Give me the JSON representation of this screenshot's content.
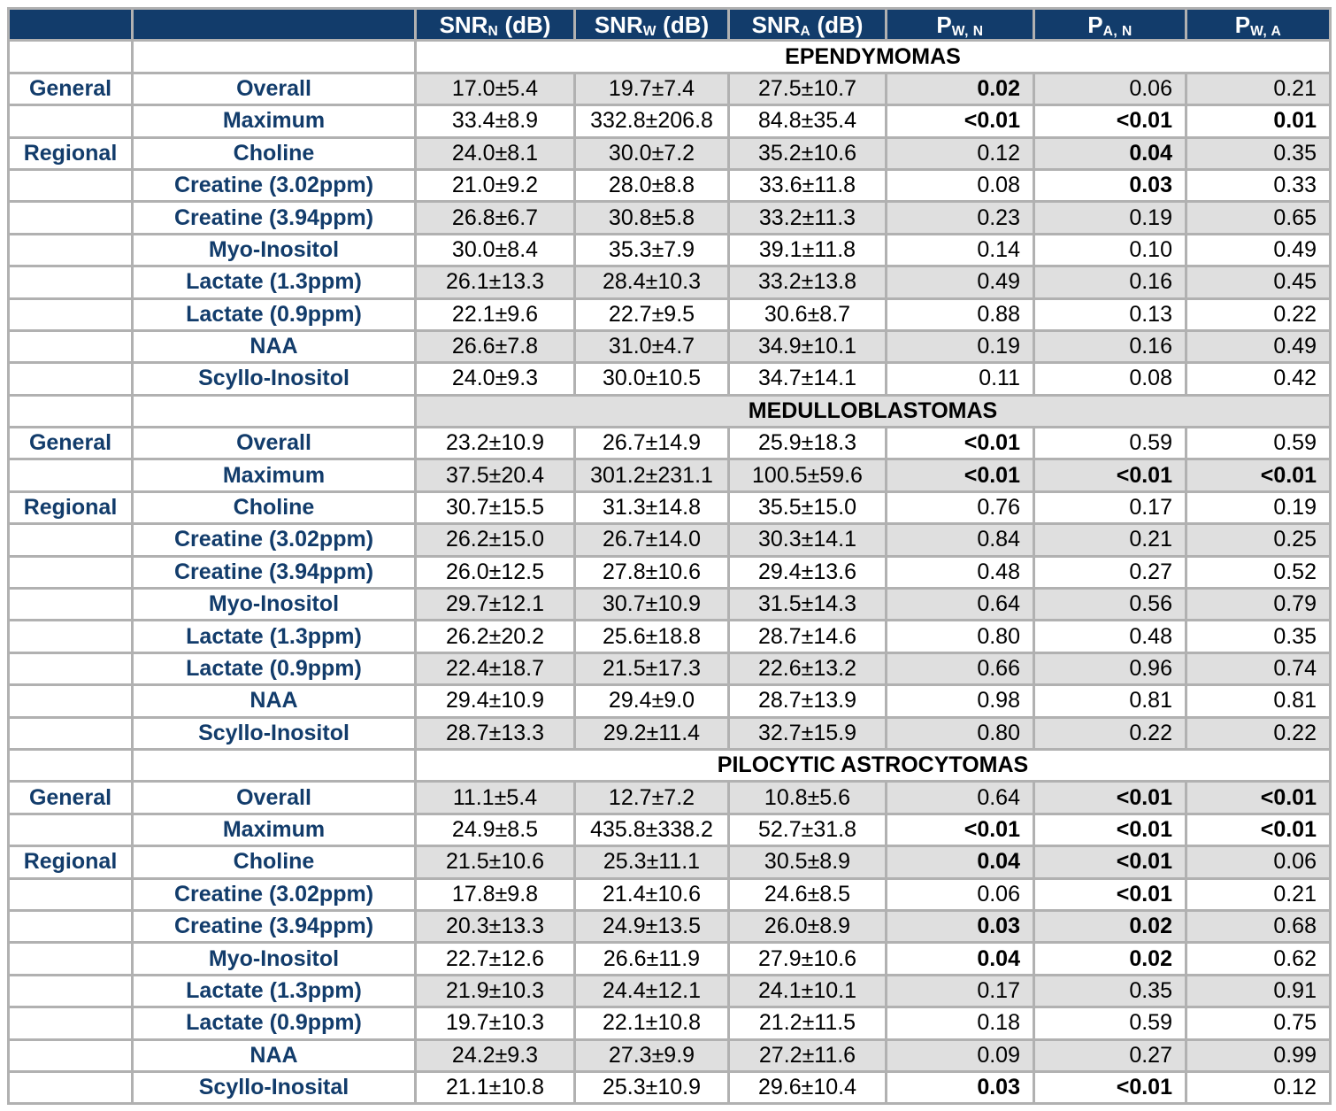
{
  "table_type": "table",
  "header": {
    "corner_cells": [
      "",
      ""
    ],
    "columns": [
      {
        "pre": "SNR",
        "sub": "N",
        "post": " (dB)"
      },
      {
        "pre": "SNR",
        "sub": "W",
        "post": " (dB)"
      },
      {
        "pre": "SNR",
        "sub": "A",
        "post": " (dB)"
      },
      {
        "pre": "P",
        "sub": "W, N",
        "post": ""
      },
      {
        "pre": "P",
        "sub": "A, N",
        "post": ""
      },
      {
        "pre": "P",
        "sub": "W, A",
        "post": ""
      }
    ]
  },
  "sections": [
    {
      "title": "EPENDYMOMAS",
      "rows": [
        {
          "group": "General",
          "label": "Overall",
          "snr": [
            "17.0±5.4",
            "19.7±7.4",
            "27.5±10.7"
          ],
          "p": [
            "0.02",
            "0.06",
            "0.21"
          ],
          "p_bold": [
            true,
            false,
            false
          ]
        },
        {
          "group": "",
          "label": "Maximum",
          "snr": [
            "33.4±8.9",
            "332.8±206.8",
            "84.8±35.4"
          ],
          "p": [
            "<0.01",
            "<0.01",
            "0.01"
          ],
          "p_bold": [
            true,
            true,
            true
          ]
        },
        {
          "group": "Regional",
          "label": "Choline",
          "snr": [
            "24.0±8.1",
            "30.0±7.2",
            "35.2±10.6"
          ],
          "p": [
            "0.12",
            "0.04",
            "0.35"
          ],
          "p_bold": [
            false,
            true,
            false
          ]
        },
        {
          "group": "",
          "label": "Creatine (3.02ppm)",
          "snr": [
            "21.0±9.2",
            "28.0±8.8",
            "33.6±11.8"
          ],
          "p": [
            "0.08",
            "0.03",
            "0.33"
          ],
          "p_bold": [
            false,
            true,
            false
          ]
        },
        {
          "group": "",
          "label": "Creatine (3.94ppm)",
          "snr": [
            "26.8±6.7",
            "30.8±5.8",
            "33.2±11.3"
          ],
          "p": [
            "0.23",
            "0.19",
            "0.65"
          ],
          "p_bold": [
            false,
            false,
            false
          ]
        },
        {
          "group": "",
          "label": "Myo-Inositol",
          "snr": [
            "30.0±8.4",
            "35.3±7.9",
            "39.1±11.8"
          ],
          "p": [
            "0.14",
            "0.10",
            "0.49"
          ],
          "p_bold": [
            false,
            false,
            false
          ]
        },
        {
          "group": "",
          "label": "Lactate (1.3ppm)",
          "snr": [
            "26.1±13.3",
            "28.4±10.3",
            "33.2±13.8"
          ],
          "p": [
            "0.49",
            "0.16",
            "0.45"
          ],
          "p_bold": [
            false,
            false,
            false
          ]
        },
        {
          "group": "",
          "label": "Lactate (0.9ppm)",
          "snr": [
            "22.1±9.6",
            "22.7±9.5",
            "30.6±8.7"
          ],
          "p": [
            "0.88",
            "0.13",
            "0.22"
          ],
          "p_bold": [
            false,
            false,
            false
          ]
        },
        {
          "group": "",
          "label": "NAA",
          "snr": [
            "26.6±7.8",
            "31.0±4.7",
            "34.9±10.1"
          ],
          "p": [
            "0.19",
            "0.16",
            "0.49"
          ],
          "p_bold": [
            false,
            false,
            false
          ]
        },
        {
          "group": "",
          "label": "Scyllo-Inositol",
          "snr": [
            "24.0±9.3",
            "30.0±10.5",
            "34.7±14.1"
          ],
          "p": [
            "0.11",
            "0.08",
            "0.42"
          ],
          "p_bold": [
            false,
            false,
            false
          ]
        }
      ]
    },
    {
      "title": "MEDULLOBLASTOMAS",
      "rows": [
        {
          "group": "General",
          "label": "Overall",
          "snr": [
            "23.2±10.9",
            "26.7±14.9",
            "25.9±18.3"
          ],
          "p": [
            "<0.01",
            "0.59",
            "0.59"
          ],
          "p_bold": [
            true,
            false,
            false
          ]
        },
        {
          "group": "",
          "label": "Maximum",
          "snr": [
            "37.5±20.4",
            "301.2±231.1",
            "100.5±59.6"
          ],
          "p": [
            "<0.01",
            "<0.01",
            "<0.01"
          ],
          "p_bold": [
            true,
            true,
            true
          ]
        },
        {
          "group": "Regional",
          "label": "Choline",
          "snr": [
            "30.7±15.5",
            "31.3±14.8",
            "35.5±15.0"
          ],
          "p": [
            "0.76",
            "0.17",
            "0.19"
          ],
          "p_bold": [
            false,
            false,
            false
          ]
        },
        {
          "group": "",
          "label": "Creatine (3.02ppm)",
          "snr": [
            "26.2±15.0",
            "26.7±14.0",
            "30.3±14.1"
          ],
          "p": [
            "0.84",
            "0.21",
            "0.25"
          ],
          "p_bold": [
            false,
            false,
            false
          ]
        },
        {
          "group": "",
          "label": "Creatine (3.94ppm)",
          "snr": [
            "26.0±12.5",
            "27.8±10.6",
            "29.4±13.6"
          ],
          "p": [
            "0.48",
            "0.27",
            "0.52"
          ],
          "p_bold": [
            false,
            false,
            false
          ]
        },
        {
          "group": "",
          "label": "Myo-Inositol",
          "snr": [
            "29.7±12.1",
            "30.7±10.9",
            "31.5±14.3"
          ],
          "p": [
            "0.64",
            "0.56",
            "0.79"
          ],
          "p_bold": [
            false,
            false,
            false
          ]
        },
        {
          "group": "",
          "label": "Lactate (1.3ppm)",
          "snr": [
            "26.2±20.2",
            "25.6±18.8",
            "28.7±14.6"
          ],
          "p": [
            "0.80",
            "0.48",
            "0.35"
          ],
          "p_bold": [
            false,
            false,
            false
          ]
        },
        {
          "group": "",
          "label": "Lactate (0.9ppm)",
          "snr": [
            "22.4±18.7",
            "21.5±17.3",
            "22.6±13.2"
          ],
          "p": [
            "0.66",
            "0.96",
            "0.74"
          ],
          "p_bold": [
            false,
            false,
            false
          ]
        },
        {
          "group": "",
          "label": "NAA",
          "snr": [
            "29.4±10.9",
            "29.4±9.0",
            "28.7±13.9"
          ],
          "p": [
            "0.98",
            "0.81",
            "0.81"
          ],
          "p_bold": [
            false,
            false,
            false
          ]
        },
        {
          "group": "",
          "label": "Scyllo-Inositol",
          "snr": [
            "28.7±13.3",
            "29.2±11.4",
            "32.7±15.9"
          ],
          "p": [
            "0.80",
            "0.22",
            "0.22"
          ],
          "p_bold": [
            false,
            false,
            false
          ]
        }
      ]
    },
    {
      "title": "PILOCYTIC ASTROCYTOMAS",
      "rows": [
        {
          "group": "General",
          "label": "Overall",
          "snr": [
            "11.1±5.4",
            "12.7±7.2",
            "10.8±5.6"
          ],
          "p": [
            "0.64",
            "<0.01",
            "<0.01"
          ],
          "p_bold": [
            false,
            true,
            true
          ]
        },
        {
          "group": "",
          "label": "Maximum",
          "snr": [
            "24.9±8.5",
            "435.8±338.2",
            "52.7±31.8"
          ],
          "p": [
            "<0.01",
            "<0.01",
            "<0.01"
          ],
          "p_bold": [
            true,
            true,
            true
          ]
        },
        {
          "group": "Regional",
          "label": "Choline",
          "snr": [
            "21.5±10.6",
            "25.3±11.1",
            "30.5±8.9"
          ],
          "p": [
            "0.04",
            "<0.01",
            "0.06"
          ],
          "p_bold": [
            true,
            true,
            false
          ]
        },
        {
          "group": "",
          "label": "Creatine (3.02ppm)",
          "snr": [
            "17.8±9.8",
            "21.4±10.6",
            "24.6±8.5"
          ],
          "p": [
            "0.06",
            "<0.01",
            "0.21"
          ],
          "p_bold": [
            false,
            true,
            false
          ]
        },
        {
          "group": "",
          "label": "Creatine (3.94ppm)",
          "snr": [
            "20.3±13.3",
            "24.9±13.5",
            "26.0±8.9"
          ],
          "p": [
            "0.03",
            "0.02",
            "0.68"
          ],
          "p_bold": [
            true,
            true,
            false
          ]
        },
        {
          "group": "",
          "label": "Myo-Inositol",
          "snr": [
            "22.7±12.6",
            "26.6±11.9",
            "27.9±10.6"
          ],
          "p": [
            "0.04",
            "0.02",
            "0.62"
          ],
          "p_bold": [
            true,
            true,
            false
          ]
        },
        {
          "group": "",
          "label": "Lactate (1.3ppm)",
          "snr": [
            "21.9±10.3",
            "24.4±12.1",
            "24.1±10.1"
          ],
          "p": [
            "0.17",
            "0.35",
            "0.91"
          ],
          "p_bold": [
            false,
            false,
            false
          ]
        },
        {
          "group": "",
          "label": "Lactate (0.9ppm)",
          "snr": [
            "19.7±10.3",
            "22.1±10.8",
            "21.2±11.5"
          ],
          "p": [
            "0.18",
            "0.59",
            "0.75"
          ],
          "p_bold": [
            false,
            false,
            false
          ]
        },
        {
          "group": "",
          "label": "NAA",
          "snr": [
            "24.2±9.3",
            "27.3±9.9",
            "27.2±11.6"
          ],
          "p": [
            "0.09",
            "0.27",
            "0.99"
          ],
          "p_bold": [
            false,
            false,
            false
          ]
        },
        {
          "group": "",
          "label": "Scyllo-Inosital",
          "snr": [
            "21.1±10.8",
            "25.3±10.9",
            "29.6±10.4"
          ],
          "p": [
            "0.03",
            "<0.01",
            "0.12"
          ],
          "p_bold": [
            true,
            true,
            false
          ]
        }
      ]
    }
  ],
  "colors": {
    "header_navy": "#123C6B",
    "label_navy": "#123C6B",
    "stripe_gray": "#DFDFDF",
    "grid_gray": "#B1B1B1",
    "data_black": "#000000"
  }
}
